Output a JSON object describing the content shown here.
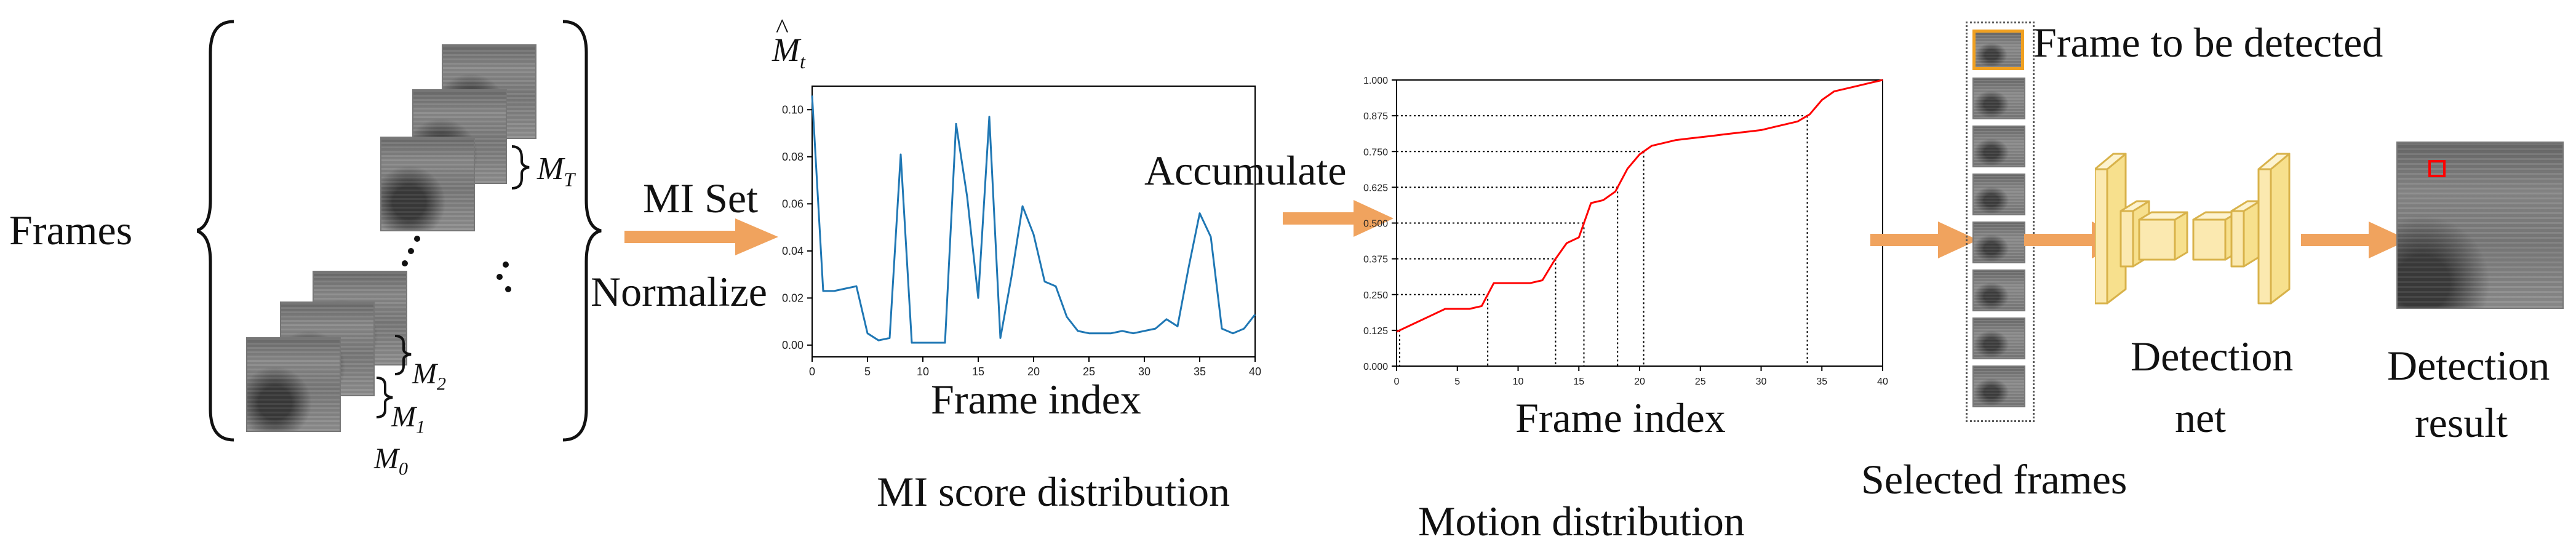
{
  "frames_label": "Frames",
  "motion_labels": {
    "m0_base": "M",
    "m0_sub": "0",
    "m1_base": "M",
    "m1_sub": "1",
    "m2_base": "M",
    "m2_sub": "2",
    "mt_base": "M",
    "mt_sub": "T"
  },
  "arrow1_top": "MI Set",
  "arrow1_bottom": "Normalize",
  "arrow2_label": "Accumulate",
  "mi_chart_caption": "MI score distribution",
  "motion_chart_caption": "Motion distribution",
  "selected_label": "Selected frames",
  "frame_to_detect_label": "Frame to be detected",
  "detection_net_label": [
    "Detection",
    "net"
  ],
  "detection_result_label": [
    "Detection",
    "result"
  ],
  "colors": {
    "arrow": "#f0a35e",
    "mi_line": "#1f77b4",
    "motion_line": "#ff0000",
    "net_fill": "#fbe9b0",
    "net_stroke": "#d8b24a",
    "highlight": "#f0a020",
    "detection_box": "#ff0000"
  },
  "chart_data": [
    {
      "type": "line",
      "title": "",
      "ylabel_base": "M",
      "ylabel_hat": "^",
      "ylabel_sub": "t",
      "xlabel": "Frame index",
      "xlim": [
        0,
        40
      ],
      "ylim": [
        -0.005,
        0.11
      ],
      "xticks": [
        0,
        5,
        10,
        15,
        20,
        25,
        30,
        35,
        40
      ],
      "yticks": [
        0.0,
        0.02,
        0.04,
        0.06,
        0.08,
        0.1
      ],
      "ytick_labels": [
        "0.00",
        "0.02",
        "0.04",
        "0.06",
        "0.08",
        "0.10"
      ],
      "x": [
        0,
        1,
        2,
        3,
        4,
        5,
        6,
        7,
        8,
        9,
        10,
        11,
        12,
        13,
        14,
        15,
        16,
        17,
        18,
        19,
        20,
        21,
        22,
        23,
        24,
        25,
        26,
        27,
        28,
        29,
        30,
        31,
        32,
        33,
        34,
        35,
        36,
        37,
        38,
        39,
        40
      ],
      "values": [
        0.106,
        0.023,
        0.023,
        0.024,
        0.025,
        0.005,
        0.002,
        0.003,
        0.081,
        0.001,
        0.001,
        0.001,
        0.001,
        0.094,
        0.063,
        0.02,
        0.097,
        0.003,
        0.029,
        0.059,
        0.047,
        0.027,
        0.025,
        0.012,
        0.006,
        0.005,
        0.005,
        0.005,
        0.006,
        0.005,
        0.006,
        0.007,
        0.011,
        0.008,
        0.033,
        0.056,
        0.046,
        0.007,
        0.005,
        0.007,
        0.013
      ]
    },
    {
      "type": "line",
      "title": "",
      "xlabel": "Frame index",
      "xlim": [
        0,
        40
      ],
      "ylim": [
        0,
        1
      ],
      "xticks": [
        0,
        5,
        10,
        15,
        20,
        25,
        30,
        35,
        40
      ],
      "yticks": [
        0,
        0.125,
        0.25,
        0.375,
        0.5,
        0.625,
        0.75,
        0.875,
        1.0
      ],
      "ytick_labels": [
        "0.000",
        "0.125",
        "0.250",
        "0.375",
        "0.500",
        "0.625",
        "0.750",
        "0.875",
        "1.000"
      ],
      "x": [
        0,
        1,
        2,
        3,
        4,
        5,
        6,
        7,
        8,
        9,
        10,
        11,
        12,
        13,
        14,
        15,
        16,
        17,
        18,
        19,
        20,
        21,
        22,
        23,
        24,
        25,
        26,
        27,
        28,
        29,
        30,
        31,
        32,
        33,
        34,
        35,
        36,
        37,
        38,
        39,
        40
      ],
      "values": [
        0.12,
        0.14,
        0.16,
        0.18,
        0.2,
        0.2,
        0.2,
        0.21,
        0.29,
        0.29,
        0.29,
        0.29,
        0.3,
        0.37,
        0.43,
        0.45,
        0.57,
        0.58,
        0.61,
        0.69,
        0.74,
        0.77,
        0.78,
        0.79,
        0.795,
        0.8,
        0.805,
        0.81,
        0.815,
        0.82,
        0.825,
        0.835,
        0.845,
        0.855,
        0.88,
        0.93,
        0.96,
        0.97,
        0.98,
        0.99,
        1.0
      ],
      "threshold_levels": [
        0.125,
        0.25,
        0.375,
        0.5,
        0.625,
        0.75,
        0.875
      ]
    }
  ]
}
